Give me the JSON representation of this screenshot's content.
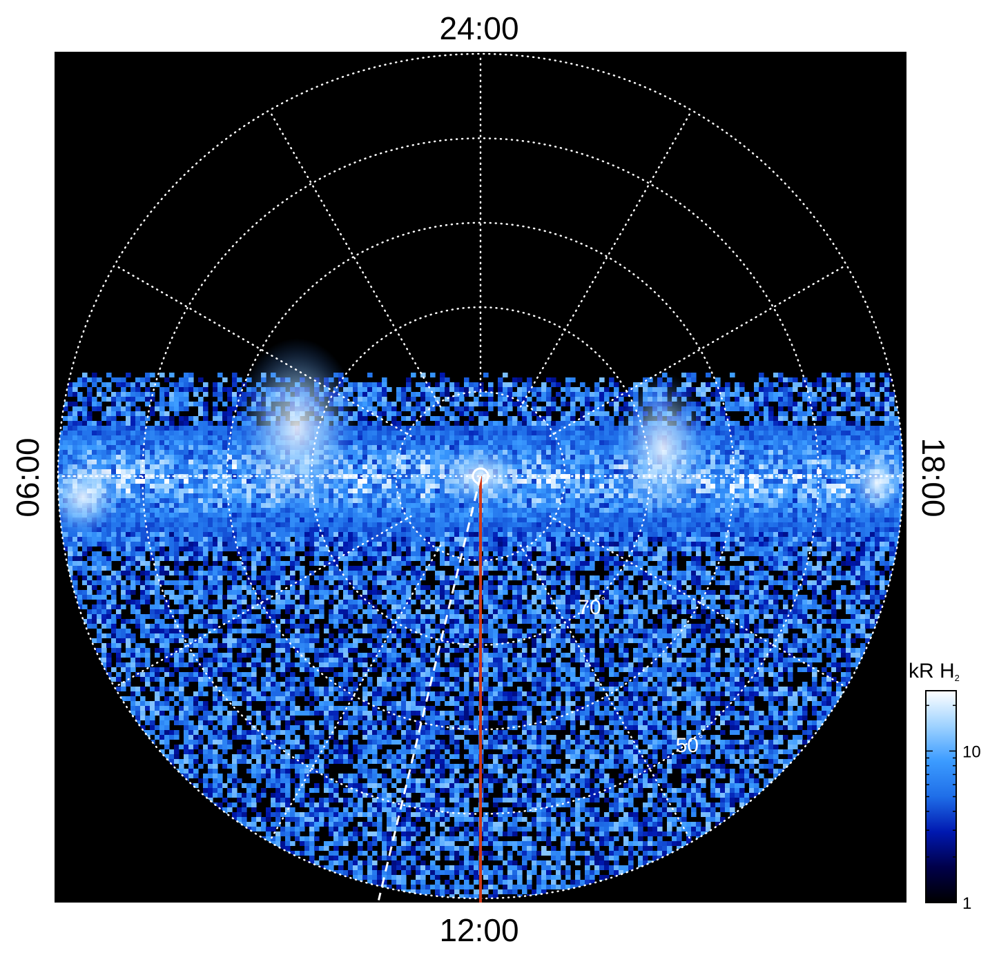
{
  "chart_data": {
    "type": "heatmap",
    "projection": "polar",
    "title": "",
    "local_time_labels": {
      "top": "24:00",
      "bottom": "12:00",
      "left": "06:00",
      "right": "18:00"
    },
    "latitude_labels": [
      {
        "text": "70",
        "latitude": 70
      },
      {
        "text": "50",
        "latitude": 50
      }
    ],
    "degree_symbol": "°",
    "latitude_circles": [
      80,
      70,
      60,
      50
    ],
    "meridian_step_hours": 2,
    "colorbar": {
      "label_main": "kR H",
      "label_sub": "2",
      "scale": "log",
      "range": [
        1,
        25
      ],
      "tick_labels": [
        "1",
        "10"
      ],
      "tick_values": [
        1,
        10
      ],
      "colors": [
        "#000000",
        "#00004a",
        "#0018b0",
        "#1f6ee8",
        "#3b9bff",
        "#9ed2ff",
        "#ffffff"
      ]
    },
    "overlays": [
      {
        "name": "noon-meridian",
        "color": "#d03a1a",
        "style": "solid",
        "local_time_hours": 12
      },
      {
        "name": "track",
        "color": "#ffffff",
        "style": "dashed",
        "local_time_hours": 11.1
      }
    ]
  }
}
